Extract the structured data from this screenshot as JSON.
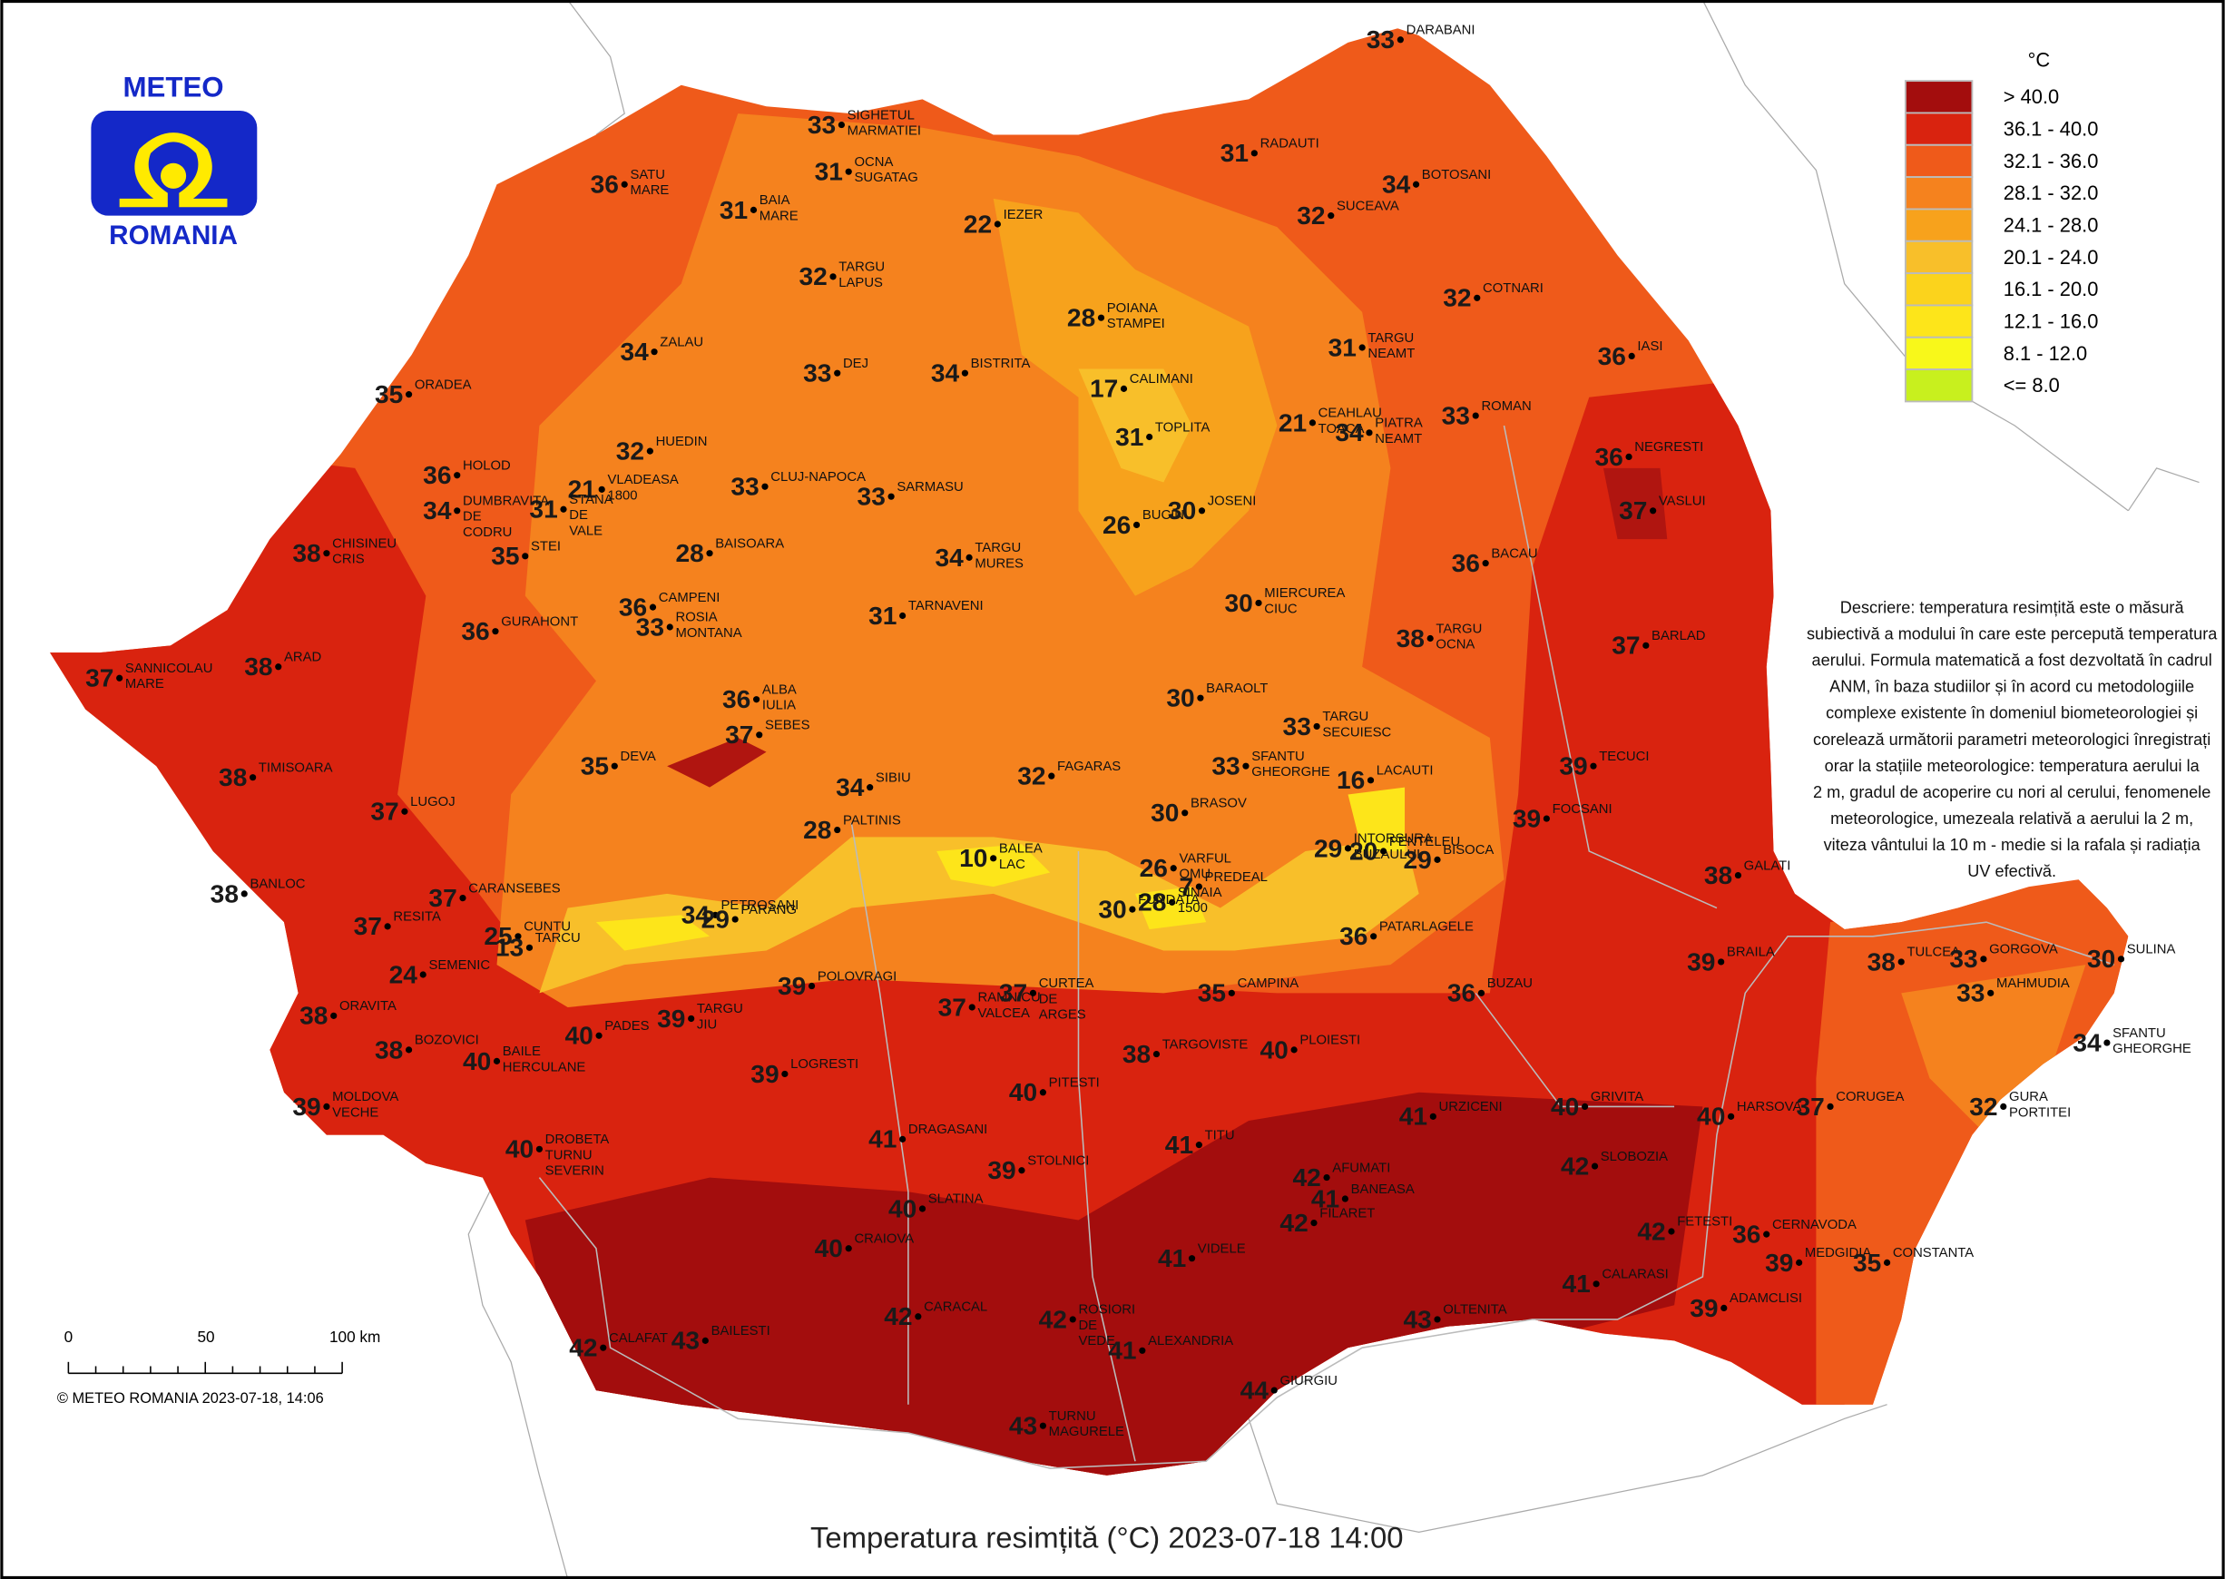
{
  "logo": {
    "top": "METEO",
    "bottom": "ROMANIA"
  },
  "legend": {
    "unit": "°C",
    "items": [
      {
        "label": "> 40.0",
        "color": "#a30d0d"
      },
      {
        "label": "36.1 - 40.0",
        "color": "#d9230f"
      },
      {
        "label": "32.1 - 36.0",
        "color": "#ef5a1a"
      },
      {
        "label": "28.1 - 32.0",
        "color": "#f5821e"
      },
      {
        "label": "24.1 - 28.0",
        "color": "#f7a21c"
      },
      {
        "label": "20.1 - 24.0",
        "color": "#f8bf2a"
      },
      {
        "label": "16.1 - 20.0",
        "color": "#fbd31c"
      },
      {
        "label": "12.1 - 16.0",
        "color": "#fde51a"
      },
      {
        "label": "8.1 - 12.0",
        "color": "#f8f81a"
      },
      {
        "label": "<= 8.0",
        "color": "#c8f01e"
      }
    ]
  },
  "description": [
    "Descriere: temperatura resimțită este o măsură",
    "subiectivă a modului în care este percepută temperatura",
    "aerului. Formula matematică a fost dezvoltată în cadrul",
    "ANM, în baza studiilor și în acord cu metodologiile",
    "complexe existente în domeniul biometeorologiei și",
    "corelează următorii parametri meteorologici înregistrați",
    "orar la stațiile meteorologice: temperatura aerului la",
    "2 m, gradul de acoperire cu nori al cerului, fenomenele",
    "meteorologice, umezeala relativă a aerului la 2 m,",
    "viteza vântului la 10 m - medie si la rafala și radiația",
    "UV efectivă."
  ],
  "stations": [
    {
      "name": "DARABANI",
      "value": 33
    },
    {
      "name": "SIGHETUL MARMATIEI",
      "value": 33
    },
    {
      "name": "OCNA SUGATAG",
      "value": 31
    },
    {
      "name": "SATU MARE",
      "value": 36
    },
    {
      "name": "BAIA MARE",
      "value": 31
    },
    {
      "name": "IEZER",
      "value": 22
    },
    {
      "name": "RADAUTI",
      "value": 31
    },
    {
      "name": "BOTOSANI",
      "value": 34
    },
    {
      "name": "SUCEAVA",
      "value": 32
    },
    {
      "name": "TARGU LAPUS",
      "value": 32
    },
    {
      "name": "POIANA STAMPEI",
      "value": 28
    },
    {
      "name": "COTNARI",
      "value": 32
    },
    {
      "name": "TARGU NEAMT",
      "value": 31
    },
    {
      "name": "IASI",
      "value": 36
    },
    {
      "name": "ZALAU",
      "value": 34
    },
    {
      "name": "DEJ",
      "value": 33
    },
    {
      "name": "BISTRITA",
      "value": 34
    },
    {
      "name": "CALIMANI",
      "value": 17
    },
    {
      "name": "ORADEA",
      "value": 35
    },
    {
      "name": "CEAHLAU TOACA",
      "value": 21
    },
    {
      "name": "PIATRA NEAMT",
      "value": 34
    },
    {
      "name": "ROMAN",
      "value": 33
    },
    {
      "name": "TOPLITA",
      "value": 31
    },
    {
      "name": "HUEDIN",
      "value": 32
    },
    {
      "name": "VLADEASA 1800",
      "value": 21
    },
    {
      "name": "HOLOD",
      "value": 36
    },
    {
      "name": "NEGRESTI",
      "value": 36
    },
    {
      "name": "CLUJ-NAPOCA",
      "value": 33
    },
    {
      "name": "STANA DE VALE",
      "value": 31
    },
    {
      "name": "DUMBRAVITA DE CODRU",
      "value": 34
    },
    {
      "name": "SARMASU",
      "value": 33
    },
    {
      "name": "VASLUI",
      "value": 37
    },
    {
      "name": "BUCIN",
      "value": 26
    },
    {
      "name": "JOSENI",
      "value": 30
    },
    {
      "name": "STEI",
      "value": 35
    },
    {
      "name": "CHISINEU CRIS",
      "value": 38
    },
    {
      "name": "BAISOARA",
      "value": 28
    },
    {
      "name": "TARGU MURES",
      "value": 34
    },
    {
      "name": "BACAU",
      "value": 36
    },
    {
      "name": "CAMPENI",
      "value": 36
    },
    {
      "name": "ROSIA MONTANA",
      "value": 33
    },
    {
      "name": "TARNAVENI",
      "value": 31
    },
    {
      "name": "MIERCUREA CIUC",
      "value": 30
    },
    {
      "name": "GURAHONT",
      "value": 36
    },
    {
      "name": "TARGU OCNA",
      "value": 38
    },
    {
      "name": "BARLAD",
      "value": 37
    },
    {
      "name": "SANNICOLAU MARE",
      "value": 37
    },
    {
      "name": "ARAD",
      "value": 38
    },
    {
      "name": "BARAOLT",
      "value": 30
    },
    {
      "name": "ALBA IULIA",
      "value": 36
    },
    {
      "name": "SEBES",
      "value": 37
    },
    {
      "name": "TARGU SECUIESC",
      "value": 33
    },
    {
      "name": "DEVA",
      "value": 35
    },
    {
      "name": "SFANTU GHEORGHE",
      "value": 33
    },
    {
      "name": "TECUCI",
      "value": 39
    },
    {
      "name": "LACAUTI",
      "value": 16
    },
    {
      "name": "TIMISOARA",
      "value": 38
    },
    {
      "name": "SIBIU",
      "value": 34
    },
    {
      "name": "FAGARAS",
      "value": 32
    },
    {
      "name": "LUGOJ",
      "value": 37
    },
    {
      "name": "BRASOV",
      "value": 30
    },
    {
      "name": "PALTINIS",
      "value": 28
    },
    {
      "name": "FOCSANI",
      "value": 39
    },
    {
      "name": "INTORSURA BUZAULUI",
      "value": 29
    },
    {
      "name": "PENTELEU",
      "value": 20
    },
    {
      "name": "BISOCA",
      "value": 29
    },
    {
      "name": "BALEA LAC",
      "value": 10
    },
    {
      "name": "BANLOC",
      "value": 38
    },
    {
      "name": "CARANSEBES",
      "value": 37
    },
    {
      "name": "VARFUL OMU",
      "value": 26
    },
    {
      "name": "PREDEAL",
      "value": 7
    },
    {
      "name": "SINAIA 1500",
      "value": 28
    },
    {
      "name": "FUNDATA",
      "value": 30
    },
    {
      "name": "GALATI",
      "value": 38
    },
    {
      "name": "PETROSANI",
      "value": 34
    },
    {
      "name": "PARANG",
      "value": 29
    },
    {
      "name": "RESITA",
      "value": 37
    },
    {
      "name": "CUNTU",
      "value": 25
    },
    {
      "name": "TARCU",
      "value": 13
    },
    {
      "name": "PATARLAGELE",
      "value": 36
    },
    {
      "name": "SEMENIC",
      "value": 24
    },
    {
      "name": "BRAILA",
      "value": 39
    },
    {
      "name": "TULCEA",
      "value": 38
    },
    {
      "name": "GORGOVA",
      "value": 33
    },
    {
      "name": "MAHMUDIA",
      "value": 33
    },
    {
      "name": "SULINA",
      "value": 30
    },
    {
      "name": "POLOVRAGI",
      "value": 39
    },
    {
      "name": "RAMNICU VALCEA",
      "value": 37
    },
    {
      "name": "CURTEA DE ARGES",
      "value": 37
    },
    {
      "name": "CAMPINA",
      "value": 35
    },
    {
      "name": "BUZAU",
      "value": 36
    },
    {
      "name": "ORAVITA",
      "value": 38
    },
    {
      "name": "PADES",
      "value": 40
    },
    {
      "name": "TARGU JIU",
      "value": 39
    },
    {
      "name": "SFANTU GHEORGHE",
      "value": 34
    },
    {
      "name": "BOZOVICI",
      "value": 38
    },
    {
      "name": "BAILE HERCULANE",
      "value": 40
    },
    {
      "name": "LOGRESTI",
      "value": 39
    },
    {
      "name": "TARGOVISTE",
      "value": 38
    },
    {
      "name": "PLOIESTI",
      "value": 40
    },
    {
      "name": "PITESTI",
      "value": 40
    },
    {
      "name": "GRIVITA",
      "value": 40
    },
    {
      "name": "MOLDOVA VECHE",
      "value": 39
    },
    {
      "name": "CORUGEA",
      "value": 37
    },
    {
      "name": "GURA PORTITEI",
      "value": 32
    },
    {
      "name": "HARSOVA",
      "value": 40
    },
    {
      "name": "URZICENI",
      "value": 41
    },
    {
      "name": "DROBETA TURNU SEVERIN",
      "value": 40
    },
    {
      "name": "DRAGASANI",
      "value": 41
    },
    {
      "name": "TITU",
      "value": 41
    },
    {
      "name": "STOLNICI",
      "value": 39
    },
    {
      "name": "SLOBOZIA",
      "value": 42
    },
    {
      "name": "AFUMATI",
      "value": 42
    },
    {
      "name": "BANEASA",
      "value": 41
    },
    {
      "name": "FILARET",
      "value": 42
    },
    {
      "name": "FETESTI",
      "value": 42
    },
    {
      "name": "CERNAVODA",
      "value": 36
    },
    {
      "name": "SLATINA",
      "value": 40
    },
    {
      "name": "MEDGIDIA",
      "value": 39
    },
    {
      "name": "CONSTANTA",
      "value": 35
    },
    {
      "name": "CRAIOVA",
      "value": 40
    },
    {
      "name": "VIDELE",
      "value": 41
    },
    {
      "name": "CALARASI",
      "value": 41
    },
    {
      "name": "ADAMCLISI",
      "value": 39
    },
    {
      "name": "ROSIORI DE VEDE",
      "value": 42
    },
    {
      "name": "CARACAL",
      "value": 42
    },
    {
      "name": "OLTENITA",
      "value": 43
    },
    {
      "name": "CALAFAT",
      "value": 42
    },
    {
      "name": "BAILESTI",
      "value": 43
    },
    {
      "name": "ALEXANDRIA",
      "value": 41
    },
    {
      "name": "GIURGIU",
      "value": 44
    },
    {
      "name": "TURNU MAGURELE",
      "value": 43
    }
  ],
  "scale_bar": {
    "labels": [
      "0",
      "50",
      "100 km"
    ]
  },
  "copyright": "© METEO ROMANIA 2023-07-18, 14:06",
  "title": "Temperatura resimțită (°C) 2023-07-18 14:00"
}
